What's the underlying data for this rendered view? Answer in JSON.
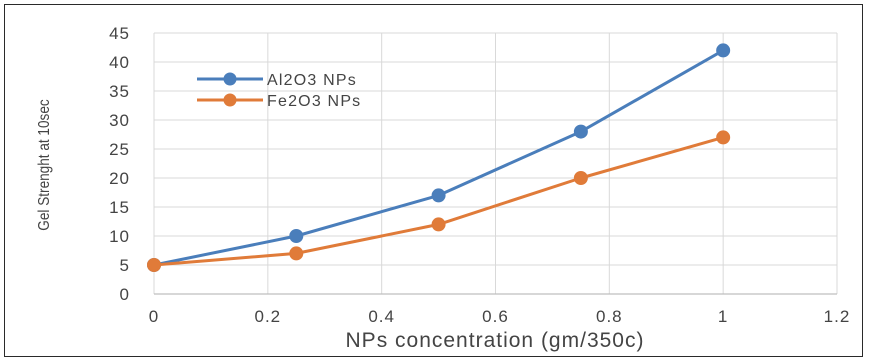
{
  "chart_data": {
    "type": "line",
    "title": "",
    "xlabel": "NPs concentration (gm/350c)",
    "ylabel": "Gel Strenght at 10sec",
    "xlim": [
      0,
      1.2
    ],
    "ylim": [
      0,
      45
    ],
    "x_ticks": [
      "0",
      "0.2",
      "0.4",
      "0.6",
      "0.8",
      "1",
      "1.2"
    ],
    "y_ticks": [
      "0",
      "5",
      "10",
      "15",
      "20",
      "25",
      "30",
      "35",
      "40",
      "45"
    ],
    "grid": true,
    "legend_position": "top-left",
    "series": [
      {
        "name": "Al2O3 NPs",
        "color": "#4a7ebb",
        "x": [
          0,
          0.25,
          0.5,
          0.75,
          1
        ],
        "y": [
          5,
          10,
          17,
          28,
          42
        ]
      },
      {
        "name": "Fe2O3 NPs",
        "color": "#e07b39",
        "x": [
          0,
          0.25,
          0.5,
          0.75,
          1
        ],
        "y": [
          5,
          7,
          12,
          20,
          27
        ]
      }
    ]
  }
}
